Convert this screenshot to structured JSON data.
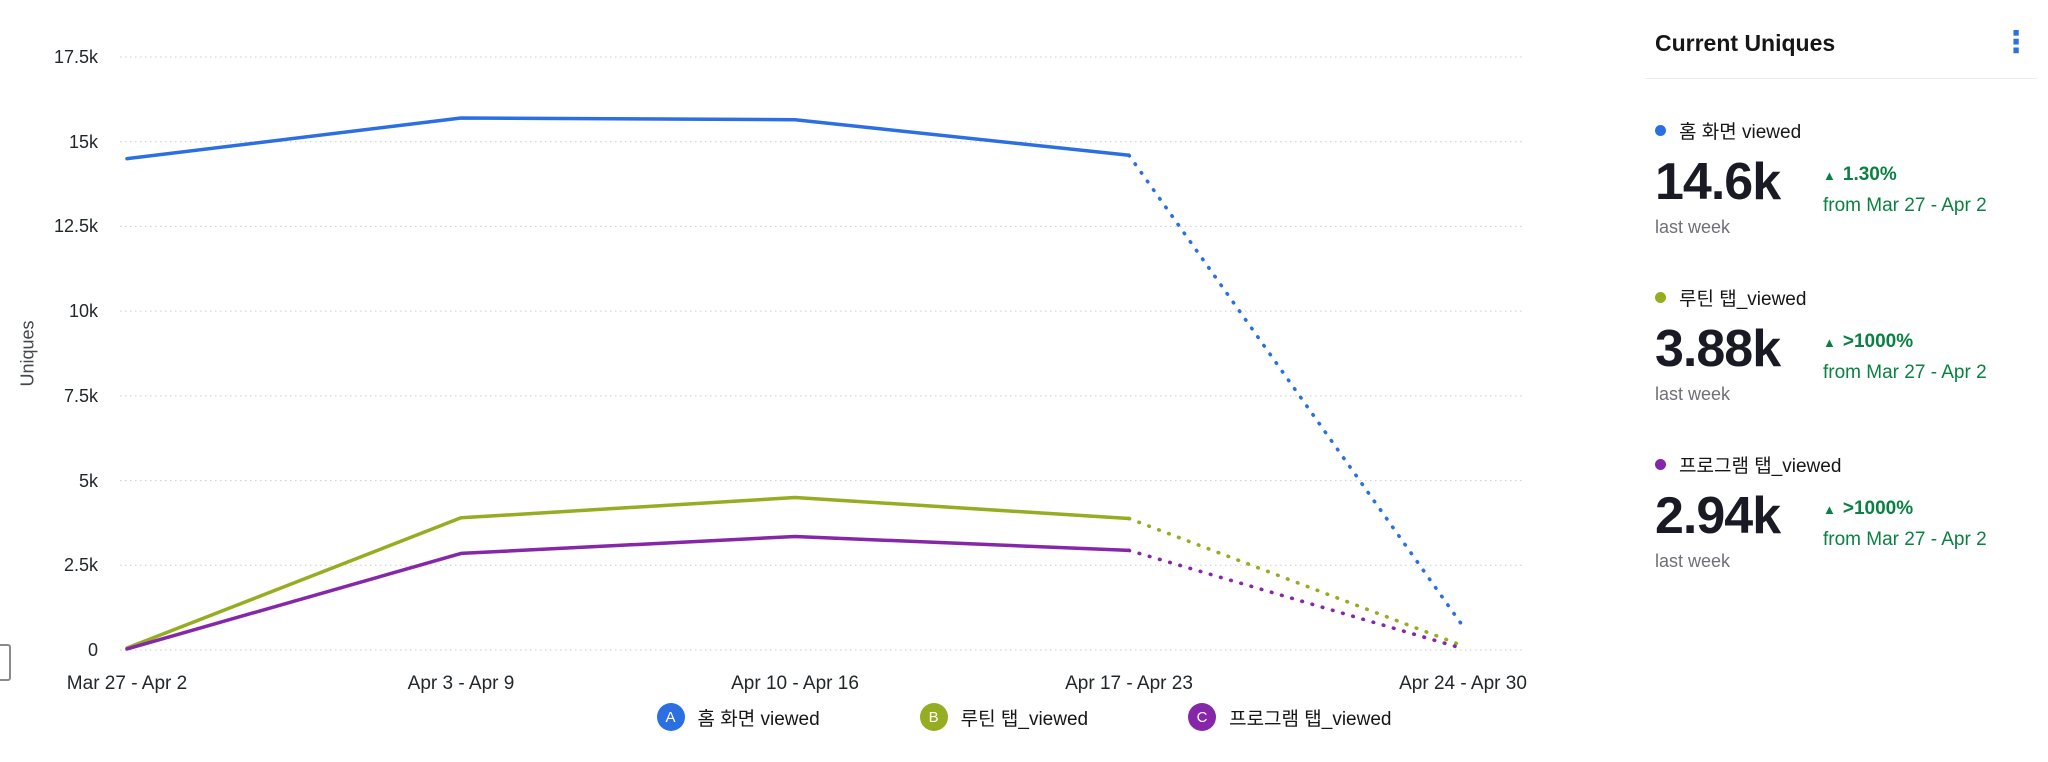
{
  "colors": {
    "accent_blue": "#2b6fe3",
    "success_green": "#0b8043",
    "grid_gray": "#cccccc"
  },
  "icons": {
    "kebab": "⋮",
    "up_triangle": "▲"
  },
  "chart_data": {
    "type": "line",
    "ylabel": "Uniques",
    "x": [
      "Mar 27 - Apr 2",
      "Apr 3 - Apr 9",
      "Apr 10 - Apr 16",
      "Apr 17 - Apr 23",
      "Apr 24 - Apr 30"
    ],
    "series": [
      {
        "letter": "A",
        "name": "홈 화면 viewed",
        "color": "#2b6fe3",
        "values": [
          14500,
          15700,
          15650,
          14600,
          700
        ],
        "dotted_from_index": 3
      },
      {
        "letter": "B",
        "name": "루틴 탭_viewed",
        "color": "#94ad21",
        "values": [
          60,
          3900,
          4500,
          3880,
          120
        ],
        "dotted_from_index": 3
      },
      {
        "letter": "C",
        "name": "프로그램 탭_viewed",
        "color": "#8626a8",
        "values": [
          30,
          2850,
          3350,
          2940,
          40
        ],
        "dotted_from_index": 3
      }
    ],
    "ylim": [
      0,
      17500
    ],
    "yticks": [
      0,
      2500,
      5000,
      7500,
      10000,
      12500,
      15000,
      17500
    ],
    "ytick_labels": [
      "0",
      "2.5k",
      "5k",
      "7.5k",
      "10k",
      "12.5k",
      "15k",
      "17.5k"
    ],
    "grid": "horizontal-dotted",
    "legend_position": "bottom"
  },
  "panel": {
    "title": "Current Uniques",
    "items": [
      {
        "name": "홈 화면 viewed",
        "color": "#2b6fe3",
        "value": "14.6k",
        "period": "last week",
        "delta": "1.30%",
        "delta_note": "from Mar 27 - Apr 2"
      },
      {
        "name": "루틴 탭_viewed",
        "color": "#94ad21",
        "value": "3.88k",
        "period": "last week",
        "delta": ">1000%",
        "delta_note": "from Mar 27 - Apr 2"
      },
      {
        "name": "프로그램 탭_viewed",
        "color": "#8626a8",
        "value": "2.94k",
        "period": "last week",
        "delta": ">1000%",
        "delta_note": "from Mar 27 - Apr 2"
      }
    ]
  }
}
